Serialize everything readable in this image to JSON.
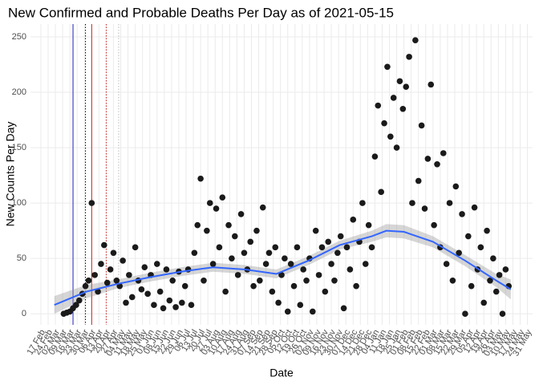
{
  "chart_data": {
    "type": "scatter",
    "title": "New Confirmed and Probable Deaths Per Day as of 2021-05-15",
    "x_label": "Date",
    "y_label": "New Counts Per Day",
    "grid": true,
    "color": "#1a1a1a",
    "xlim": [
      "2020-02-07",
      "2021-06-05"
    ],
    "ylim": [
      -10,
      261.6
    ],
    "yticks": [
      0,
      50,
      100,
      150,
      200,
      250
    ],
    "xticks": [
      {
        "value": "2020-02-17",
        "label": "17 Feb"
      },
      {
        "value": "2020-02-24",
        "label": "24 Feb"
      },
      {
        "value": "2020-03-02",
        "label": "02 Mar"
      },
      {
        "value": "2020-03-09",
        "label": "09 Mar"
      },
      {
        "value": "2020-03-16",
        "label": "16 Mar"
      },
      {
        "value": "2020-03-23",
        "label": "23 Mar"
      },
      {
        "value": "2020-03-30",
        "label": "30 Mar"
      },
      {
        "value": "2020-04-06",
        "label": "06 Apr"
      },
      {
        "value": "2020-04-13",
        "label": "13 Apr"
      },
      {
        "value": "2020-04-20",
        "label": "20 Apr"
      },
      {
        "value": "2020-04-27",
        "label": "27 Apr"
      },
      {
        "value": "2020-05-04",
        "label": "04 May"
      },
      {
        "value": "2020-05-11",
        "label": "11 May"
      },
      {
        "value": "2020-05-18",
        "label": "18 May"
      },
      {
        "value": "2020-05-25",
        "label": "25 May"
      },
      {
        "value": "2020-06-01",
        "label": "01 Jun"
      },
      {
        "value": "2020-06-08",
        "label": "08 Jun"
      },
      {
        "value": "2020-06-15",
        "label": "15 Jun"
      },
      {
        "value": "2020-06-22",
        "label": "22 Jun"
      },
      {
        "value": "2020-06-29",
        "label": "29 Jun"
      },
      {
        "value": "2020-07-06",
        "label": "06 Jul"
      },
      {
        "value": "2020-07-13",
        "label": "13 Jul"
      },
      {
        "value": "2020-07-20",
        "label": "20 Jul"
      },
      {
        "value": "2020-07-27",
        "label": "27 Jul"
      },
      {
        "value": "2020-08-03",
        "label": "03 Aug"
      },
      {
        "value": "2020-08-10",
        "label": "10 Aug"
      },
      {
        "value": "2020-08-17",
        "label": "17 Aug"
      },
      {
        "value": "2020-08-24",
        "label": "24 Aug"
      },
      {
        "value": "2020-08-31",
        "label": "31 Aug"
      },
      {
        "value": "2020-09-07",
        "label": "07 Sep"
      },
      {
        "value": "2020-09-14",
        "label": "14 Sep"
      },
      {
        "value": "2020-09-21",
        "label": "21 Sep"
      },
      {
        "value": "2020-09-28",
        "label": "28 Sep"
      },
      {
        "value": "2020-10-05",
        "label": "05 Oct"
      },
      {
        "value": "2020-10-12",
        "label": "12 Oct"
      },
      {
        "value": "2020-10-19",
        "label": "19 Oct"
      },
      {
        "value": "2020-10-26",
        "label": "26 Oct"
      },
      {
        "value": "2020-11-02",
        "label": "02 Nov"
      },
      {
        "value": "2020-11-09",
        "label": "09 Nov"
      },
      {
        "value": "2020-11-16",
        "label": "16 Nov"
      },
      {
        "value": "2020-11-23",
        "label": "23 Nov"
      },
      {
        "value": "2020-11-30",
        "label": "30 Nov"
      },
      {
        "value": "2020-12-07",
        "label": "07 Dec"
      },
      {
        "value": "2020-12-14",
        "label": "14 Dec"
      },
      {
        "value": "2020-12-21",
        "label": "21 Dec"
      },
      {
        "value": "2020-12-28",
        "label": "28 Dec"
      },
      {
        "value": "2021-01-04",
        "label": "04 Jan"
      },
      {
        "value": "2021-01-11",
        "label": "11 Jan"
      },
      {
        "value": "2021-01-18",
        "label": "18 Jan"
      },
      {
        "value": "2021-01-25",
        "label": "25 Jan"
      },
      {
        "value": "2021-02-01",
        "label": "01 Feb"
      },
      {
        "value": "2021-02-08",
        "label": "08 Feb"
      },
      {
        "value": "2021-02-15",
        "label": "15 Feb"
      },
      {
        "value": "2021-02-22",
        "label": "22 Feb"
      },
      {
        "value": "2021-03-01",
        "label": "01 Mar"
      },
      {
        "value": "2021-03-08",
        "label": "08 Mar"
      },
      {
        "value": "2021-03-15",
        "label": "15 Mar"
      },
      {
        "value": "2021-03-22",
        "label": "22 Mar"
      },
      {
        "value": "2021-03-29",
        "label": "29 Mar"
      },
      {
        "value": "2021-04-05",
        "label": "05 Apr"
      },
      {
        "value": "2021-04-12",
        "label": "12 Apr"
      },
      {
        "value": "2021-04-19",
        "label": "19 Apr"
      },
      {
        "value": "2021-04-26",
        "label": "26 Apr"
      },
      {
        "value": "2021-05-03",
        "label": "03 May"
      },
      {
        "value": "2021-05-10",
        "label": "10 May"
      },
      {
        "value": "2021-05-17",
        "label": "17 May"
      },
      {
        "value": "2021-05-24",
        "label": "24 May"
      },
      {
        "value": "2021-05-31",
        "label": "31 May"
      }
    ],
    "vlines": [
      {
        "x": "2020-03-19",
        "color": "#1f1fbf",
        "dash": false
      },
      {
        "x": "2020-03-31",
        "color": "#000000",
        "dash": true
      },
      {
        "x": "2020-04-06",
        "color": "#cc1f1f",
        "dash": false
      },
      {
        "x": "2020-04-20",
        "color": "#cc1f1f",
        "dash": true
      },
      {
        "x": "2020-05-02",
        "color": "#bbbbbb",
        "dash": true
      }
    ],
    "x": [
      "2020-03-10",
      "2020-03-13",
      "2020-03-16",
      "2020-03-19",
      "2020-03-22",
      "2020-03-25",
      "2020-03-28",
      "2020-03-31",
      "2020-04-03",
      "2020-04-06",
      "2020-04-09",
      "2020-04-12",
      "2020-04-15",
      "2020-04-18",
      "2020-04-21",
      "2020-04-24",
      "2020-04-27",
      "2020-04-30",
      "2020-05-03",
      "2020-05-06",
      "2020-05-09",
      "2020-05-12",
      "2020-05-15",
      "2020-05-18",
      "2020-05-21",
      "2020-05-24",
      "2020-05-27",
      "2020-05-30",
      "2020-06-02",
      "2020-06-05",
      "2020-06-08",
      "2020-06-11",
      "2020-06-14",
      "2020-06-17",
      "2020-06-20",
      "2020-06-23",
      "2020-06-26",
      "2020-06-29",
      "2020-07-02",
      "2020-07-05",
      "2020-07-08",
      "2020-07-11",
      "2020-07-14",
      "2020-07-17",
      "2020-07-20",
      "2020-07-23",
      "2020-07-26",
      "2020-07-29",
      "2020-08-01",
      "2020-08-04",
      "2020-08-07",
      "2020-08-10",
      "2020-08-13",
      "2020-08-16",
      "2020-08-19",
      "2020-08-22",
      "2020-08-25",
      "2020-08-28",
      "2020-08-31",
      "2020-09-03",
      "2020-09-06",
      "2020-09-09",
      "2020-09-12",
      "2020-09-15",
      "2020-09-18",
      "2020-09-21",
      "2020-09-24",
      "2020-09-27",
      "2020-09-30",
      "2020-10-03",
      "2020-10-06",
      "2020-10-09",
      "2020-10-12",
      "2020-10-15",
      "2020-10-18",
      "2020-10-21",
      "2020-10-24",
      "2020-10-27",
      "2020-10-30",
      "2020-11-02",
      "2020-11-05",
      "2020-11-08",
      "2020-11-11",
      "2020-11-14",
      "2020-11-17",
      "2020-11-20",
      "2020-11-23",
      "2020-11-26",
      "2020-11-29",
      "2020-12-02",
      "2020-12-05",
      "2020-12-08",
      "2020-12-11",
      "2020-12-14",
      "2020-12-17",
      "2020-12-20",
      "2020-12-23",
      "2020-12-26",
      "2020-12-29",
      "2021-01-01",
      "2021-01-04",
      "2021-01-07",
      "2021-01-10",
      "2021-01-13",
      "2021-01-16",
      "2021-01-19",
      "2021-01-22",
      "2021-01-25",
      "2021-01-28",
      "2021-01-31",
      "2021-02-03",
      "2021-02-06",
      "2021-02-09",
      "2021-02-12",
      "2021-02-15",
      "2021-02-18",
      "2021-02-21",
      "2021-02-24",
      "2021-02-27",
      "2021-03-02",
      "2021-03-05",
      "2021-03-08",
      "2021-03-11",
      "2021-03-14",
      "2021-03-17",
      "2021-03-20",
      "2021-03-23",
      "2021-03-26",
      "2021-03-29",
      "2021-04-01",
      "2021-04-04",
      "2021-04-07",
      "2021-04-10",
      "2021-04-13",
      "2021-04-16",
      "2021-04-19",
      "2021-04-22",
      "2021-04-25",
      "2021-04-28",
      "2021-05-01",
      "2021-05-04",
      "2021-05-07",
      "2021-05-10",
      "2021-05-13"
    ],
    "values": [
      0,
      1,
      2,
      5,
      8,
      12,
      18,
      25,
      30,
      100,
      35,
      20,
      45,
      62,
      28,
      40,
      55,
      30,
      25,
      48,
      10,
      35,
      15,
      60,
      30,
      22,
      42,
      18,
      35,
      8,
      45,
      20,
      5,
      40,
      12,
      30,
      6,
      38,
      10,
      25,
      40,
      8,
      55,
      80,
      122,
      30,
      75,
      100,
      45,
      95,
      60,
      105,
      20,
      80,
      50,
      70,
      35,
      90,
      55,
      40,
      65,
      25,
      75,
      30,
      96,
      45,
      55,
      20,
      60,
      10,
      35,
      50,
      2,
      45,
      25,
      60,
      8,
      40,
      30,
      50,
      2,
      75,
      35,
      60,
      20,
      65,
      45,
      30,
      55,
      70,
      5,
      60,
      40,
      85,
      25,
      65,
      100,
      45,
      80,
      60,
      142,
      188,
      110,
      172,
      223,
      160,
      195,
      150,
      210,
      185,
      205,
      232,
      100,
      247,
      120,
      170,
      95,
      140,
      207,
      80,
      135,
      60,
      145,
      45,
      100,
      30,
      115,
      55,
      90,
      0,
      70,
      25,
      96,
      40,
      60,
      10,
      75,
      30,
      50,
      20,
      35,
      0,
      40,
      25
    ],
    "smooth": {
      "color": "#3366ff",
      "x": [
        "2020-03-01",
        "2020-04-01",
        "2020-05-01",
        "2020-06-01",
        "2020-07-01",
        "2020-08-01",
        "2020-09-01",
        "2020-10-01",
        "2020-11-01",
        "2020-12-01",
        "2021-01-01",
        "2021-01-15",
        "2021-02-01",
        "2021-03-01",
        "2021-04-01",
        "2021-05-01",
        "2021-05-15"
      ],
      "values": [
        8,
        20,
        27,
        33,
        38,
        42,
        40,
        36,
        48,
        62,
        70,
        75,
        74,
        65,
        48,
        30,
        22
      ],
      "lower": [
        0,
        14,
        23,
        29,
        34,
        38,
        36,
        32,
        44,
        58,
        65,
        69,
        68,
        60,
        43,
        24,
        13
      ],
      "upper": [
        16,
        26,
        31,
        37,
        42,
        46,
        44,
        40,
        52,
        66,
        75,
        81,
        80,
        70,
        53,
        36,
        31
      ]
    }
  }
}
